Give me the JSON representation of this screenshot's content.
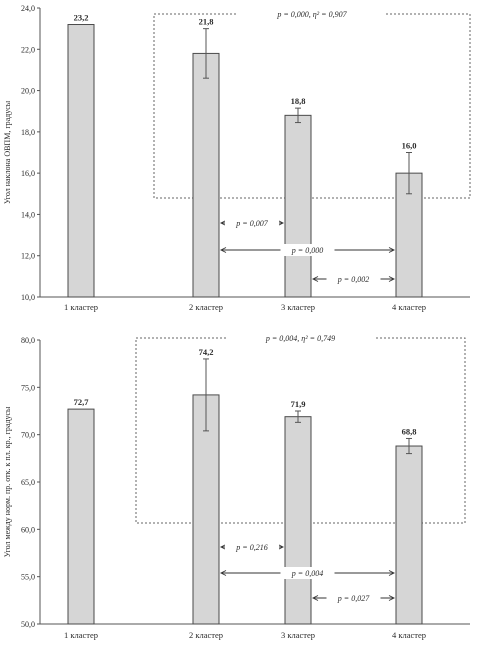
{
  "chart_data": [
    {
      "type": "bar",
      "ylabel": "Угол наклона ОВПМ, градусы",
      "ylim": [
        10.0,
        24.0
      ],
      "yticks": [
        "10,0",
        "12,0",
        "14,0",
        "16,0",
        "18,0",
        "20,0",
        "22,0",
        "24,0"
      ],
      "ytick_values": [
        10,
        12,
        14,
        16,
        18,
        20,
        22,
        24
      ],
      "categories": [
        "1 кластер",
        "2 кластер",
        "3 кластер",
        "4 кластер"
      ],
      "values": [
        23.2,
        21.8,
        18.8,
        16.0
      ],
      "value_labels": [
        "23,2",
        "21,8",
        "18,8",
        "16,0"
      ],
      "errors": [
        0,
        1.2,
        0.35,
        1.0
      ],
      "group_annotation": {
        "text": "p = 0,000, η² = 0,907",
        "from": 1,
        "to": 3
      },
      "comparisons": [
        {
          "text": "p = 0,007",
          "from": 1,
          "to": 2
        },
        {
          "text": "p = 0,000",
          "from": 1,
          "to": 3
        },
        {
          "text": "p = 0,002",
          "from": 2,
          "to": 3
        }
      ]
    },
    {
      "type": "bar",
      "ylabel": "Угол между норм. пр. отк. к пл. кр., градусы",
      "ylim": [
        50.0,
        80.0
      ],
      "yticks": [
        "50,0",
        "55,0",
        "60,0",
        "65,0",
        "70,0",
        "75,0",
        "80,0"
      ],
      "ytick_values": [
        50,
        55,
        60,
        65,
        70,
        75,
        80
      ],
      "categories": [
        "1 кластер",
        "2 кластер",
        "3 кластер",
        "4 кластер"
      ],
      "values": [
        72.7,
        74.2,
        71.9,
        68.8
      ],
      "value_labels": [
        "72,7",
        "74,2",
        "71,9",
        "68,8"
      ],
      "errors": [
        0,
        3.8,
        0.6,
        0.8
      ],
      "group_annotation": {
        "text": "p = 0,004, η² = 0,749",
        "from": 1,
        "to": 3
      },
      "comparisons": [
        {
          "text": "p = 0,216",
          "from": 1,
          "to": 2
        },
        {
          "text": "p = 0,004",
          "from": 1,
          "to": 3
        },
        {
          "text": "p = 0,027",
          "from": 2,
          "to": 3
        }
      ]
    }
  ]
}
